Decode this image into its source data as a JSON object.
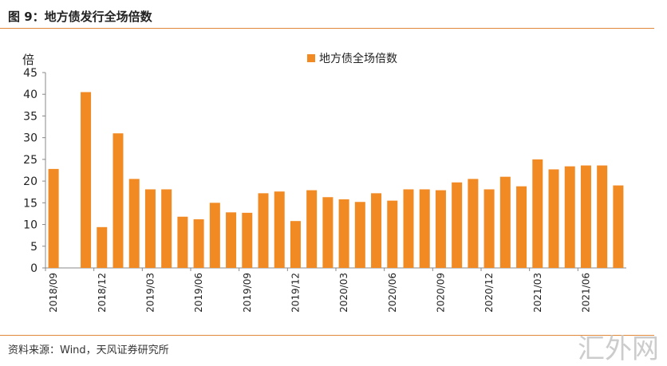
{
  "title": "图 9：地方债发行全场倍数",
  "source": "资料来源：Wind，天风证券研究所",
  "watermark": "汇外网",
  "chart_data": {
    "type": "bar",
    "title": "",
    "ylabel": "倍",
    "ylim": [
      0,
      45
    ],
    "yticks": [
      0,
      5,
      10,
      15,
      20,
      25,
      30,
      35,
      40,
      45
    ],
    "legend": {
      "label": "地方债全场倍数",
      "placement": "top-center"
    },
    "color": "#f28a24",
    "categories": [
      "2018/09",
      "2018/10",
      "2018/11",
      "2018/12",
      "2019/01",
      "2019/02",
      "2019/03",
      "2019/04",
      "2019/05",
      "2019/06",
      "2019/07",
      "2019/08",
      "2019/09",
      "2019/10",
      "2019/11",
      "2019/12",
      "2020/01",
      "2020/02",
      "2020/03",
      "2020/04",
      "2020/05",
      "2020/06",
      "2020/07",
      "2020/08",
      "2020/09",
      "2020/10",
      "2020/11",
      "2020/12",
      "2021/01",
      "2021/02",
      "2021/03",
      "2021/04",
      "2021/05",
      "2021/06",
      "2021/07",
      "2021/08"
    ],
    "values": [
      22.8,
      null,
      40.5,
      9.4,
      31,
      20.5,
      18.1,
      18.1,
      11.8,
      11.2,
      15,
      12.8,
      12.7,
      17.2,
      17.6,
      10.8,
      17.9,
      16.3,
      15.8,
      15.2,
      17.2,
      15.5,
      18.1,
      18.1,
      17.9,
      19.7,
      20.5,
      18.1,
      21,
      18.8,
      25,
      22.7,
      23.4,
      23.6,
      23.6,
      19
    ],
    "xtick_labels": [
      "2018/09",
      "2018/12",
      "2019/03",
      "2019/06",
      "2019/09",
      "2019/12",
      "2020/03",
      "2020/06",
      "2020/09",
      "2020/12",
      "2021/03",
      "2021/06"
    ]
  }
}
